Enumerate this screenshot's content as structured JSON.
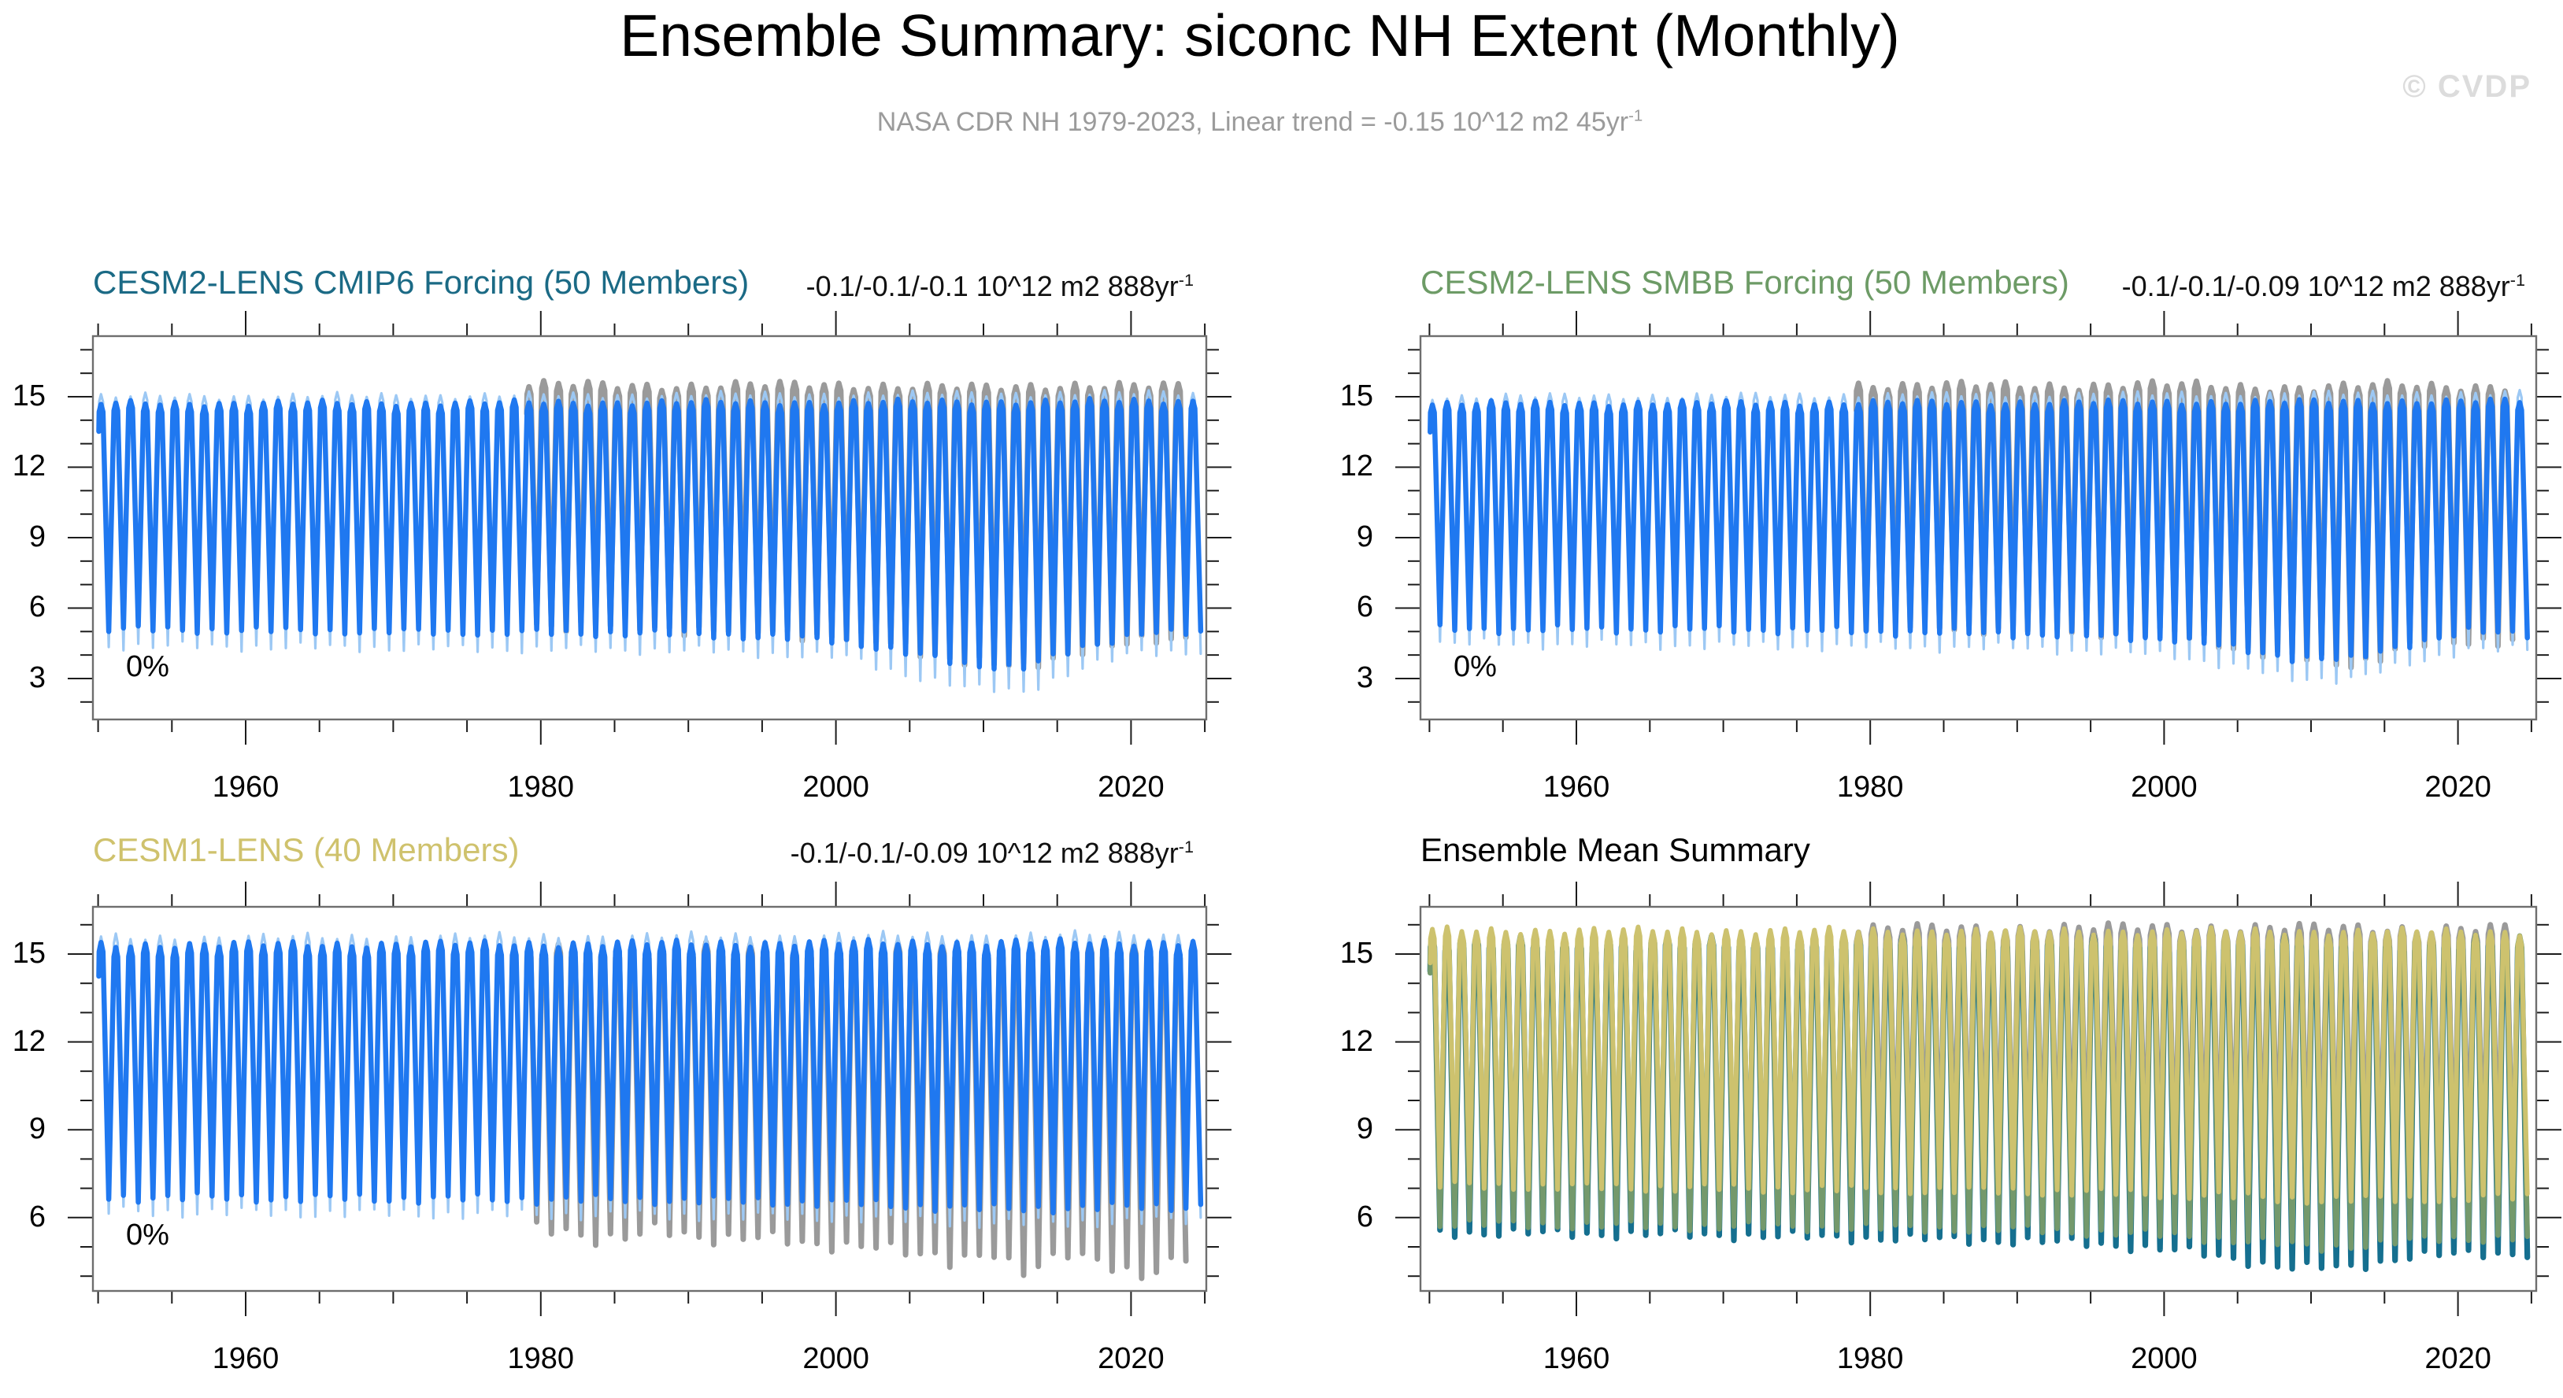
{
  "header": {
    "title": "Ensemble Summary: siconc NH Extent (Monthly)",
    "subtitle": "NASA CDR NH 1979-2023, Linear trend = -0.15 10^12 m2 45yr",
    "subtitle_sup": "-1",
    "watermark": "© CVDP"
  },
  "chart_data": [
    {
      "id": "cesm2-lens-cmip6",
      "type": "line",
      "title": "CESM2-LENS CMIP6 Forcing (50 Members)",
      "title_color": "#1b6a85",
      "trend": "-0.1/-0.1/-0.1 10^12 m2 888yr",
      "trend_sup": "-1",
      "inside_label": "0%",
      "xlim": [
        1949.6,
        2025.1
      ],
      "ylim": [
        1.3,
        17.6
      ],
      "x_ticks": [
        1960,
        1980,
        2000,
        2020
      ],
      "x_minor_step": 5,
      "y_ticks": [
        15,
        12,
        9,
        6,
        3
      ],
      "y_minor_step": 1,
      "series": [
        {
          "name": "observations-nasa-cdr",
          "color": "#9a9a9a",
          "width": 7,
          "start": 1979,
          "end": 2023,
          "jit": 1.6,
          "max_knots": [
            [
              1979,
              15.5
            ],
            [
              1990,
              15.45
            ],
            [
              2000,
              15.5
            ],
            [
              2010,
              15.35
            ],
            [
              2016,
              15.5
            ],
            [
              2023,
              15.4
            ]
          ],
          "min_knots": [
            [
              1979,
              5.3
            ],
            [
              1990,
              5.1
            ],
            [
              2000,
              4.8
            ],
            [
              2007,
              3.9
            ],
            [
              2012,
              3.4
            ],
            [
              2016,
              4.3
            ],
            [
              2023,
              4.7
            ]
          ]
        },
        {
          "name": "member-range",
          "color": "#9cc8f4",
          "width": 3.2,
          "start": 1950,
          "end": 2024,
          "jit": 1.2,
          "max_knots": [
            [
              1950,
              15.0
            ],
            [
              2024,
              15.15
            ]
          ],
          "min_knots": [
            [
              1950,
              4.4
            ],
            [
              1970,
              4.3
            ],
            [
              1990,
              4.2
            ],
            [
              2000,
              3.9
            ],
            [
              2004,
              3.2
            ],
            [
              2008,
              2.6
            ],
            [
              2012,
              2.5
            ],
            [
              2016,
              3.4
            ],
            [
              2020,
              4.2
            ],
            [
              2024,
              4.1
            ]
          ]
        },
        {
          "name": "ensemble-members",
          "color": "#1f78f0",
          "width": 6.5,
          "start": 1950,
          "end": 2024,
          "jit": 1,
          "max_knots": [
            [
              1950,
              14.7
            ],
            [
              2000,
              14.75
            ],
            [
              2024,
              14.8
            ]
          ],
          "min_knots": [
            [
              1950,
              5.1
            ],
            [
              1970,
              5.0
            ],
            [
              1990,
              4.9
            ],
            [
              2000,
              4.6
            ],
            [
              2004,
              4.1
            ],
            [
              2008,
              3.6
            ],
            [
              2012,
              3.5
            ],
            [
              2016,
              4.3
            ],
            [
              2020,
              5.0
            ],
            [
              2024,
              4.9
            ]
          ]
        }
      ]
    },
    {
      "id": "cesm2-lens-smbb",
      "type": "line",
      "title": "CESM2-LENS SMBB Forcing (50 Members)",
      "title_color": "#6d9b66",
      "trend": "-0.1/-0.1/-0.09 10^12 m2 888yr",
      "trend_sup": "-1",
      "inside_label": "0%",
      "xlim": [
        1949.4,
        2025.3
      ],
      "ylim": [
        1.3,
        17.6
      ],
      "x_ticks": [
        1960,
        1980,
        2000,
        2020
      ],
      "x_minor_step": 5,
      "y_ticks": [
        15,
        12,
        9,
        6,
        3
      ],
      "y_minor_step": 1,
      "series": [
        {
          "name": "observations-nasa-cdr",
          "color": "#9a9a9a",
          "width": 7,
          "start": 1979,
          "end": 2023,
          "jit": 1.6,
          "max_knots": [
            [
              1979,
              15.5
            ],
            [
              1990,
              15.45
            ],
            [
              2000,
              15.5
            ],
            [
              2010,
              15.35
            ],
            [
              2016,
              15.5
            ],
            [
              2023,
              15.4
            ]
          ],
          "min_knots": [
            [
              1979,
              5.3
            ],
            [
              1990,
              5.1
            ],
            [
              2000,
              4.9
            ],
            [
              2007,
              4.0
            ],
            [
              2012,
              3.6
            ],
            [
              2016,
              4.4
            ],
            [
              2023,
              4.7
            ]
          ]
        },
        {
          "name": "member-range",
          "color": "#9cc8f4",
          "width": 3.2,
          "start": 1950,
          "end": 2024,
          "jit": 1.2,
          "max_knots": [
            [
              1950,
              15.0
            ],
            [
              2024,
              15.15
            ]
          ],
          "min_knots": [
            [
              1950,
              4.5
            ],
            [
              1970,
              4.4
            ],
            [
              1990,
              4.3
            ],
            [
              2000,
              4.0
            ],
            [
              2004,
              3.5
            ],
            [
              2008,
              3.0
            ],
            [
              2012,
              3.0
            ],
            [
              2016,
              3.6
            ],
            [
              2020,
              4.3
            ],
            [
              2024,
              4.2
            ]
          ]
        },
        {
          "name": "ensemble-members",
          "color": "#1f78f0",
          "width": 6.5,
          "start": 1950,
          "end": 2024,
          "jit": 1,
          "max_knots": [
            [
              1950,
              14.7
            ],
            [
              2000,
              14.75
            ],
            [
              2024,
              14.8
            ]
          ],
          "min_knots": [
            [
              1950,
              5.1
            ],
            [
              1970,
              5.1
            ],
            [
              1990,
              4.9
            ],
            [
              2000,
              4.7
            ],
            [
              2004,
              4.3
            ],
            [
              2008,
              3.9
            ],
            [
              2012,
              3.8
            ],
            [
              2016,
              4.5
            ],
            [
              2020,
              5.0
            ],
            [
              2024,
              4.9
            ]
          ]
        }
      ]
    },
    {
      "id": "cesm1-lens",
      "type": "line",
      "title": "CESM1-LENS (40 Members)",
      "title_color": "#cfc26d",
      "trend": "-0.1/-0.1/-0.09 10^12 m2 888yr",
      "trend_sup": "-1",
      "inside_label": "0%",
      "xlim": [
        1949.6,
        2025.1
      ],
      "ylim": [
        3.5,
        16.6
      ],
      "x_ticks": [
        1960,
        1980,
        2000,
        2020
      ],
      "x_minor_step": 5,
      "y_ticks": [
        15,
        12,
        9,
        6
      ],
      "y_minor_step": 1,
      "series": [
        {
          "name": "observations-nasa-cdr",
          "color": "#9a9a9a",
          "width": 7,
          "start": 1979,
          "end": 2023,
          "jit": 1.6,
          "max_knots": [
            [
              1979,
              15.2
            ],
            [
              2023,
              15.15
            ]
          ],
          "min_knots": [
            [
              1979,
              5.6
            ],
            [
              1983,
              5.3
            ],
            [
              1987,
              5.6
            ],
            [
              1990,
              5.2
            ],
            [
              1994,
              5.5
            ],
            [
              1998,
              4.9
            ],
            [
              2002,
              5.2
            ],
            [
              2005,
              4.7
            ],
            [
              2007,
              4.4
            ],
            [
              2010,
              4.9
            ],
            [
              2012,
              4.2
            ],
            [
              2015,
              4.7
            ],
            [
              2018,
              4.4
            ],
            [
              2020,
              4.1
            ],
            [
              2023,
              4.6
            ]
          ]
        },
        {
          "name": "member-range",
          "color": "#9cc8f4",
          "width": 3.2,
          "start": 1950,
          "end": 2024,
          "jit": 1.2,
          "max_knots": [
            [
              1950,
              15.55
            ],
            [
              2024,
              15.65
            ]
          ],
          "min_knots": [
            [
              1950,
              6.2
            ],
            [
              1980,
              6.1
            ],
            [
              2000,
              6.0
            ],
            [
              2010,
              5.8
            ],
            [
              2024,
              5.9
            ]
          ]
        },
        {
          "name": "ensemble-members",
          "color": "#1f78f0",
          "width": 6.5,
          "start": 1950,
          "end": 2024,
          "jit": 1,
          "max_knots": [
            [
              1950,
              15.3
            ],
            [
              2024,
              15.4
            ]
          ],
          "min_knots": [
            [
              1950,
              6.7
            ],
            [
              1990,
              6.6
            ],
            [
              2000,
              6.5
            ],
            [
              2010,
              6.3
            ],
            [
              2024,
              6.4
            ]
          ]
        }
      ]
    },
    {
      "id": "ensemble-mean-summary",
      "type": "line",
      "title": "Ensemble Mean Summary",
      "title_color": "#000000",
      "trend": "",
      "trend_sup": "",
      "inside_label": "",
      "xlim": [
        1949.4,
        2025.3
      ],
      "ylim": [
        3.5,
        16.6
      ],
      "x_ticks": [
        1960,
        1980,
        2000,
        2020
      ],
      "x_minor_step": 5,
      "y_ticks": [
        15,
        12,
        9,
        6
      ],
      "y_minor_step": 1,
      "series": [
        {
          "name": "observations-nasa-cdr",
          "color": "#9a9a9a",
          "width": 7,
          "start": 1979,
          "end": 2023,
          "jit": 1.5,
          "max_knots": [
            [
              1979,
              15.85
            ],
            [
              2000,
              15.9
            ],
            [
              2023,
              15.85
            ]
          ],
          "min_knots": [
            [
              1979,
              7.6
            ],
            [
              2023,
              7.3
            ]
          ]
        },
        {
          "name": "cesm2-lens-cmip6-mean",
          "color": "#156f8f",
          "width": 7.2,
          "start": 1950,
          "end": 2024,
          "jit": 1,
          "max_knots": [
            [
              1950,
              15.5
            ],
            [
              2024,
              15.5
            ]
          ],
          "min_knots": [
            [
              1950,
              5.5
            ],
            [
              1970,
              5.4
            ],
            [
              1980,
              5.3
            ],
            [
              1990,
              5.2
            ],
            [
              1995,
              5.1
            ],
            [
              2000,
              4.9
            ],
            [
              2004,
              4.6
            ],
            [
              2008,
              4.3
            ],
            [
              2012,
              4.3
            ],
            [
              2016,
              4.7
            ],
            [
              2024,
              4.8
            ]
          ]
        },
        {
          "name": "cesm2-lens-smbb-mean",
          "color": "#74996c",
          "width": 6.6,
          "start": 1950,
          "end": 2024,
          "jit": 1,
          "max_knots": [
            [
              1950,
              15.55
            ],
            [
              2024,
              15.6
            ]
          ],
          "min_knots": [
            [
              1950,
              5.8
            ],
            [
              1970,
              5.7
            ],
            [
              1990,
              5.6
            ],
            [
              2000,
              5.4
            ],
            [
              2005,
              5.2
            ],
            [
              2010,
              5.0
            ],
            [
              2014,
              5.1
            ],
            [
              2018,
              5.3
            ],
            [
              2024,
              5.3
            ]
          ]
        },
        {
          "name": "cesm1-lens-mean",
          "color": "#cdc26e",
          "width": 6,
          "start": 1950,
          "end": 2024,
          "jit": 1,
          "max_knots": [
            [
              1950,
              15.8
            ],
            [
              2024,
              15.75
            ]
          ],
          "min_knots": [
            [
              1950,
              7.1
            ],
            [
              1970,
              7.0
            ],
            [
              1990,
              6.9
            ],
            [
              2000,
              6.8
            ],
            [
              2010,
              6.6
            ],
            [
              2024,
              6.7
            ]
          ]
        }
      ]
    }
  ]
}
